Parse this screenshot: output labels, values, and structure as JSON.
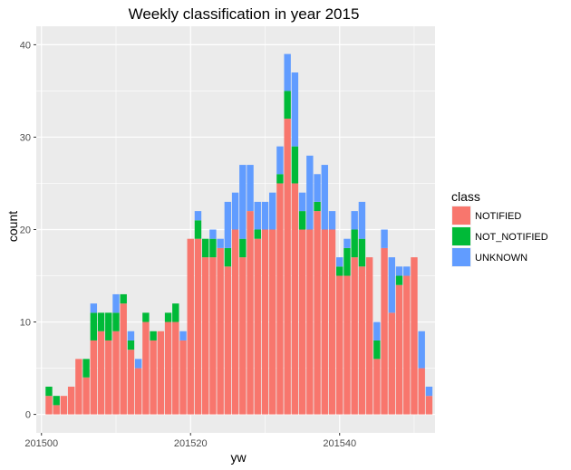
{
  "chart_data": {
    "type": "bar",
    "stacked": true,
    "title": "Weekly classification in year 2015",
    "xlabel": "yw",
    "ylabel": "count",
    "xlim": [
      201499.3,
      201552.8
    ],
    "ylim": [
      -2,
      42
    ],
    "xticks": [
      201500,
      201520,
      201540
    ],
    "yticks": [
      0,
      10,
      20,
      30,
      40
    ],
    "grid": true,
    "legend": {
      "title": "class",
      "position": "right"
    },
    "colors": {
      "NOTIFIED": "#F8766D",
      "NOT_NOTIFIED": "#00BA38",
      "UNKNOWN": "#619CFF",
      "panel": "#EBEBEB",
      "grid": "#FFFFFF"
    },
    "x": [
      201501,
      201502,
      201503,
      201504,
      201505,
      201506,
      201507,
      201508,
      201509,
      201510,
      201511,
      201512,
      201513,
      201514,
      201515,
      201516,
      201517,
      201518,
      201519,
      201520,
      201521,
      201522,
      201523,
      201524,
      201525,
      201526,
      201527,
      201528,
      201529,
      201530,
      201531,
      201532,
      201533,
      201534,
      201535,
      201536,
      201537,
      201538,
      201539,
      201540,
      201541,
      201542,
      201543,
      201544,
      201545,
      201546,
      201547,
      201548,
      201549,
      201550,
      201551,
      201552
    ],
    "series": [
      {
        "name": "NOTIFIED",
        "values": [
          2,
          1,
          2,
          3,
          6,
          4,
          8,
          9,
          8,
          9,
          12,
          7,
          5,
          10,
          8,
          9,
          10,
          10,
          8,
          19,
          19,
          17,
          17,
          18,
          16,
          20,
          17,
          22,
          19,
          20,
          20,
          25,
          32,
          25,
          20,
          20,
          22,
          20,
          20,
          15,
          15,
          17,
          16,
          17,
          6,
          18,
          11,
          14,
          15,
          17,
          5,
          2
        ]
      },
      {
        "name": "NOT_NOTIFIED",
        "values": [
          1,
          1,
          0,
          0,
          0,
          2,
          3,
          2,
          3,
          2,
          1,
          1,
          0,
          1,
          1,
          0,
          1,
          2,
          0,
          0,
          2,
          2,
          2,
          0,
          2,
          0,
          2,
          0,
          1,
          0,
          0,
          1,
          3,
          4,
          2,
          0,
          1,
          0,
          0,
          1,
          3,
          3,
          3,
          0,
          2,
          0,
          0,
          1,
          0,
          0,
          0,
          0
        ]
      },
      {
        "name": "UNKNOWN",
        "values": [
          0,
          0,
          0,
          0,
          0,
          0,
          1,
          0,
          0,
          2,
          0,
          1,
          1,
          0,
          0,
          0,
          0,
          0,
          1,
          0,
          1,
          0,
          1,
          1,
          5,
          4,
          8,
          5,
          3,
          3,
          4,
          3,
          4,
          8,
          2,
          8,
          3,
          7,
          2,
          1,
          1,
          2,
          4,
          0,
          2,
          2,
          6,
          1,
          1,
          0,
          4,
          1
        ]
      }
    ]
  }
}
